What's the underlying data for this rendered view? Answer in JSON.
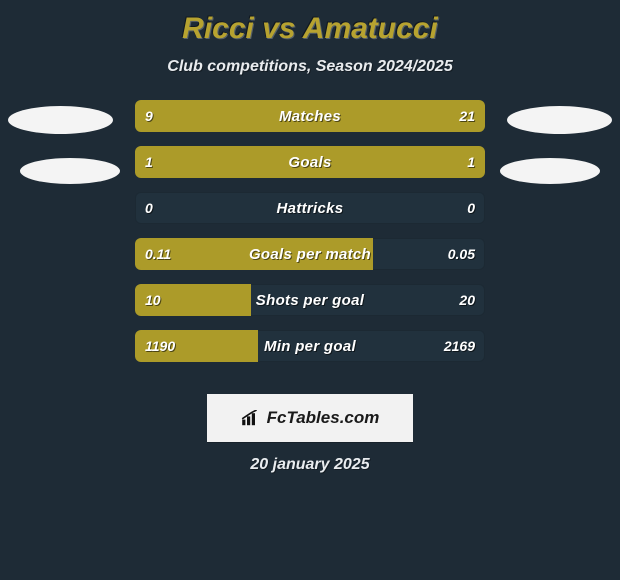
{
  "theme": {
    "background": "#1e2b36",
    "title_color": "#b7a330",
    "subtitle_color": "#e9ecef",
    "badge_color": "#f4f4f4",
    "row_track_color": "#21313d",
    "fill_color": "#ac9b29",
    "row_label_color": "#ffffff",
    "value_color": "#ffffff",
    "brand_bg": "#f2f2f2",
    "brand_text": "#1a1a1a",
    "date_color": "#e9ecef"
  },
  "header": {
    "title": "Ricci vs Amatucci",
    "subtitle": "Club competitions, Season 2024/2025"
  },
  "rows": [
    {
      "label": "Matches",
      "left": "9",
      "right": "21",
      "left_pct": 30,
      "right_pct": 70
    },
    {
      "label": "Goals",
      "left": "1",
      "right": "1",
      "left_pct": 50,
      "right_pct": 50
    },
    {
      "label": "Hattricks",
      "left": "0",
      "right": "0",
      "left_pct": 0,
      "right_pct": 0
    },
    {
      "label": "Goals per match",
      "left": "0.11",
      "right": "0.05",
      "left_pct": 68,
      "right_pct": 0
    },
    {
      "label": "Shots per goal",
      "left": "10",
      "right": "20",
      "left_pct": 33,
      "right_pct": 0
    },
    {
      "label": "Min per goal",
      "left": "1190",
      "right": "2169",
      "left_pct": 35,
      "right_pct": 0
    }
  ],
  "brand": {
    "text": "FcTables.com"
  },
  "date": "20 january 2025",
  "typography": {
    "title_fontsize": 30,
    "subtitle_fontsize": 16,
    "row_label_fontsize": 15,
    "value_fontsize": 14,
    "date_fontsize": 16,
    "brand_fontsize": 17
  }
}
